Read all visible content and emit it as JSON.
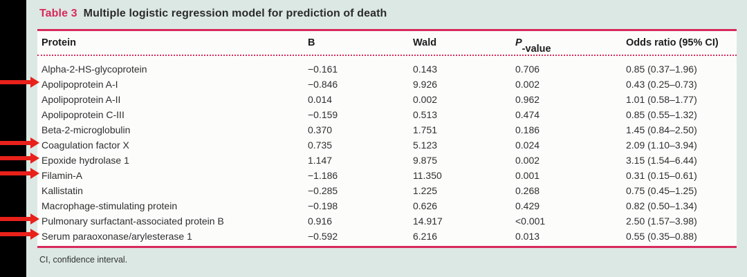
{
  "title": {
    "label": "Table 3",
    "text": "Multiple logistic regression model for prediction of death"
  },
  "table": {
    "headers": {
      "protein": "Protein",
      "b": "B",
      "wald": "Wald",
      "p_italic": "P",
      "p_rest": "-value",
      "odds_ratio": "Odds ratio (95% CI)"
    },
    "rows": [
      {
        "protein": "Alpha-2-HS-glycoprotein",
        "b": "−0.161",
        "wald": "0.143",
        "p": "0.706",
        "or": "0.85 (0.37–1.96)",
        "flagged": false
      },
      {
        "protein": "Apolipoprotein A-I",
        "b": "−0.846",
        "wald": "9.926",
        "p": "0.002",
        "or": "0.43 (0.25–0.73)",
        "flagged": true
      },
      {
        "protein": "Apolipoprotein A-II",
        "b": "0.014",
        "wald": "0.002",
        "p": "0.962",
        "or": "1.01 (0.58–1.77)",
        "flagged": false
      },
      {
        "protein": "Apolipoprotein C-III",
        "b": "−0.159",
        "wald": "0.513",
        "p": "0.474",
        "or": "0.85 (0.55–1.32)",
        "flagged": false
      },
      {
        "protein": "Beta-2-microglobulin",
        "b": "0.370",
        "wald": "1.751",
        "p": "0.186",
        "or": "1.45 (0.84–2.50)",
        "flagged": false
      },
      {
        "protein": "Coagulation factor X",
        "b": "0.735",
        "wald": "5.123",
        "p": "0.024",
        "or": "2.09 (1.10–3.94)",
        "flagged": true
      },
      {
        "protein": "Epoxide hydrolase 1",
        "b": "1.147",
        "wald": "9.875",
        "p": "0.002",
        "or": "3.15 (1.54–6.44)",
        "flagged": true
      },
      {
        "protein": "Filamin-A",
        "b": "−1.186",
        "wald": "11.350",
        "p": "0.001",
        "or": "0.31 (0.15–0.61)",
        "flagged": true
      },
      {
        "protein": "Kallistatin",
        "b": "−0.285",
        "wald": "1.225",
        "p": "0.268",
        "or": "0.75 (0.45–1.25)",
        "flagged": false
      },
      {
        "protein": "Macrophage-stimulating protein",
        "b": "−0.198",
        "wald": "0.626",
        "p": "0.429",
        "or": "0.82 (0.50–1.34)",
        "flagged": false
      },
      {
        "protein": "Pulmonary surfactant-associated protein B",
        "b": "0.916",
        "wald": "14.917",
        "p": "<0.001",
        "or": "2.50 (1.57–3.98)",
        "flagged": true
      },
      {
        "protein": "Serum paraoxonase/arylesterase 1",
        "b": "−0.592",
        "wald": "6.216",
        "p": "0.013",
        "or": "0.55 (0.35–0.88)",
        "flagged": true
      }
    ],
    "footnote": "CI, confidence interval."
  },
  "colors": {
    "accent_crimson": "#d8295b",
    "arrow_red": "#e8211b",
    "page_background": "#dce8e4",
    "table_background": "#fcfdfb"
  }
}
